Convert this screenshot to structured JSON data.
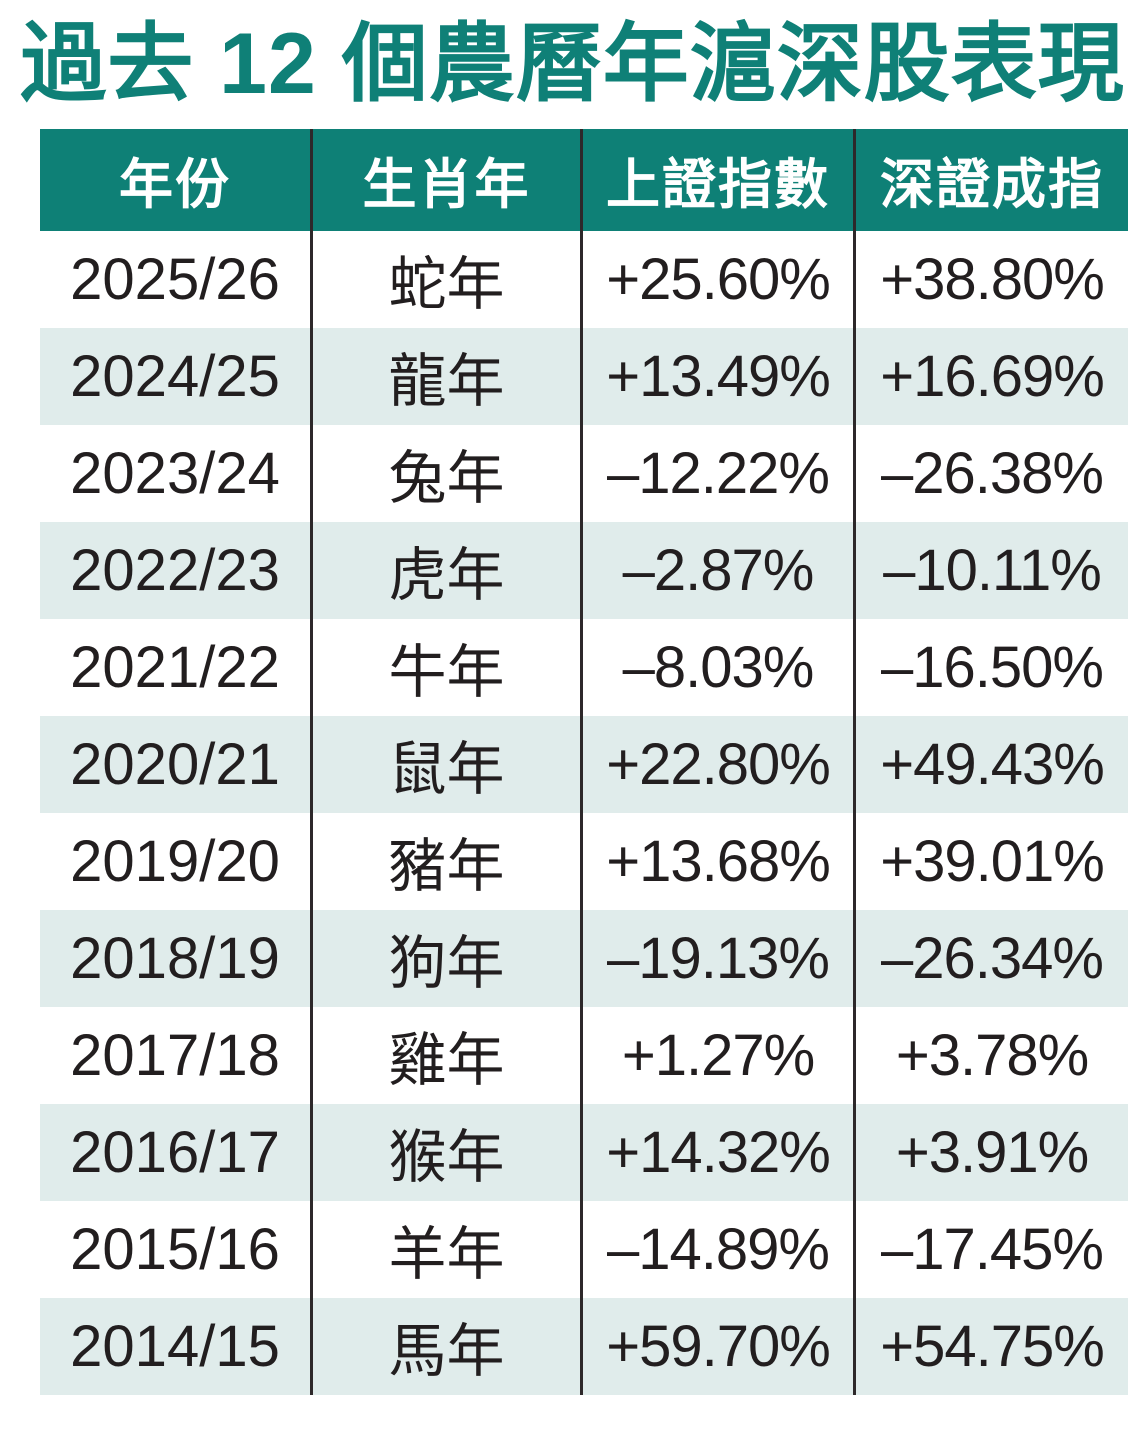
{
  "page": {
    "title": "過去 12 個農曆年滬深股表現"
  },
  "colors": {
    "title_teal": "#0F8077",
    "header_bg": "#0E8076",
    "row_alt_bg": "#E0ECEB",
    "body_text": "#221E1F",
    "divider": "#2D282A"
  },
  "table": {
    "columns": [
      "年份",
      "生肖年",
      "上證指數",
      "深證成指"
    ],
    "rows": [
      {
        "year": "2025/26",
        "zodiac": "蛇年",
        "sse": "+25.60%",
        "szse": "+38.80%"
      },
      {
        "year": "2024/25",
        "zodiac": "龍年",
        "sse": "+13.49%",
        "szse": "+16.69%"
      },
      {
        "year": "2023/24",
        "zodiac": "兔年",
        "sse": "–12.22%",
        "szse": "–26.38%"
      },
      {
        "year": "2022/23",
        "zodiac": "虎年",
        "sse": "–2.87%",
        "szse": "–10.11%"
      },
      {
        "year": "2021/22",
        "zodiac": "牛年",
        "sse": "–8.03%",
        "szse": "–16.50%"
      },
      {
        "year": "2020/21",
        "zodiac": "鼠年",
        "sse": "+22.80%",
        "szse": "+49.43%"
      },
      {
        "year": "2019/20",
        "zodiac": "豬年",
        "sse": "+13.68%",
        "szse": "+39.01%"
      },
      {
        "year": "2018/19",
        "zodiac": "狗年",
        "sse": "–19.13%",
        "szse": "–26.34%"
      },
      {
        "year": "2017/18",
        "zodiac": "雞年",
        "sse": "+1.27%",
        "szse": "+3.78%"
      },
      {
        "year": "2016/17",
        "zodiac": "猴年",
        "sse": "+14.32%",
        "szse": "+3.91%"
      },
      {
        "year": "2015/16",
        "zodiac": "羊年",
        "sse": "–14.89%",
        "szse": "–17.45%"
      },
      {
        "year": "2014/15",
        "zodiac": "馬年",
        "sse": "+59.70%",
        "szse": "+54.75%"
      }
    ]
  },
  "chart_data": {
    "type": "table",
    "title": "過去 12 個農曆年滬深股表現",
    "columns": [
      "年份",
      "生肖年",
      "上證指數",
      "深證成指"
    ],
    "categories": [
      "2025/26",
      "2024/25",
      "2023/24",
      "2022/23",
      "2021/22",
      "2020/21",
      "2019/20",
      "2018/19",
      "2017/18",
      "2016/17",
      "2015/16",
      "2014/15"
    ],
    "zodiac_years": [
      "蛇年",
      "龍年",
      "兔年",
      "虎年",
      "牛年",
      "鼠年",
      "豬年",
      "狗年",
      "雞年",
      "猴年",
      "羊年",
      "馬年"
    ],
    "series": [
      {
        "name": "上證指數",
        "values": [
          25.6,
          13.49,
          -12.22,
          -2.87,
          -8.03,
          22.8,
          13.68,
          -19.13,
          1.27,
          14.32,
          -14.89,
          59.7
        ]
      },
      {
        "name": "深證成指",
        "values": [
          38.8,
          16.69,
          -26.38,
          -10.11,
          -16.5,
          49.43,
          39.01,
          -26.34,
          3.78,
          3.91,
          -17.45,
          54.75
        ]
      }
    ],
    "value_unit": "%"
  }
}
